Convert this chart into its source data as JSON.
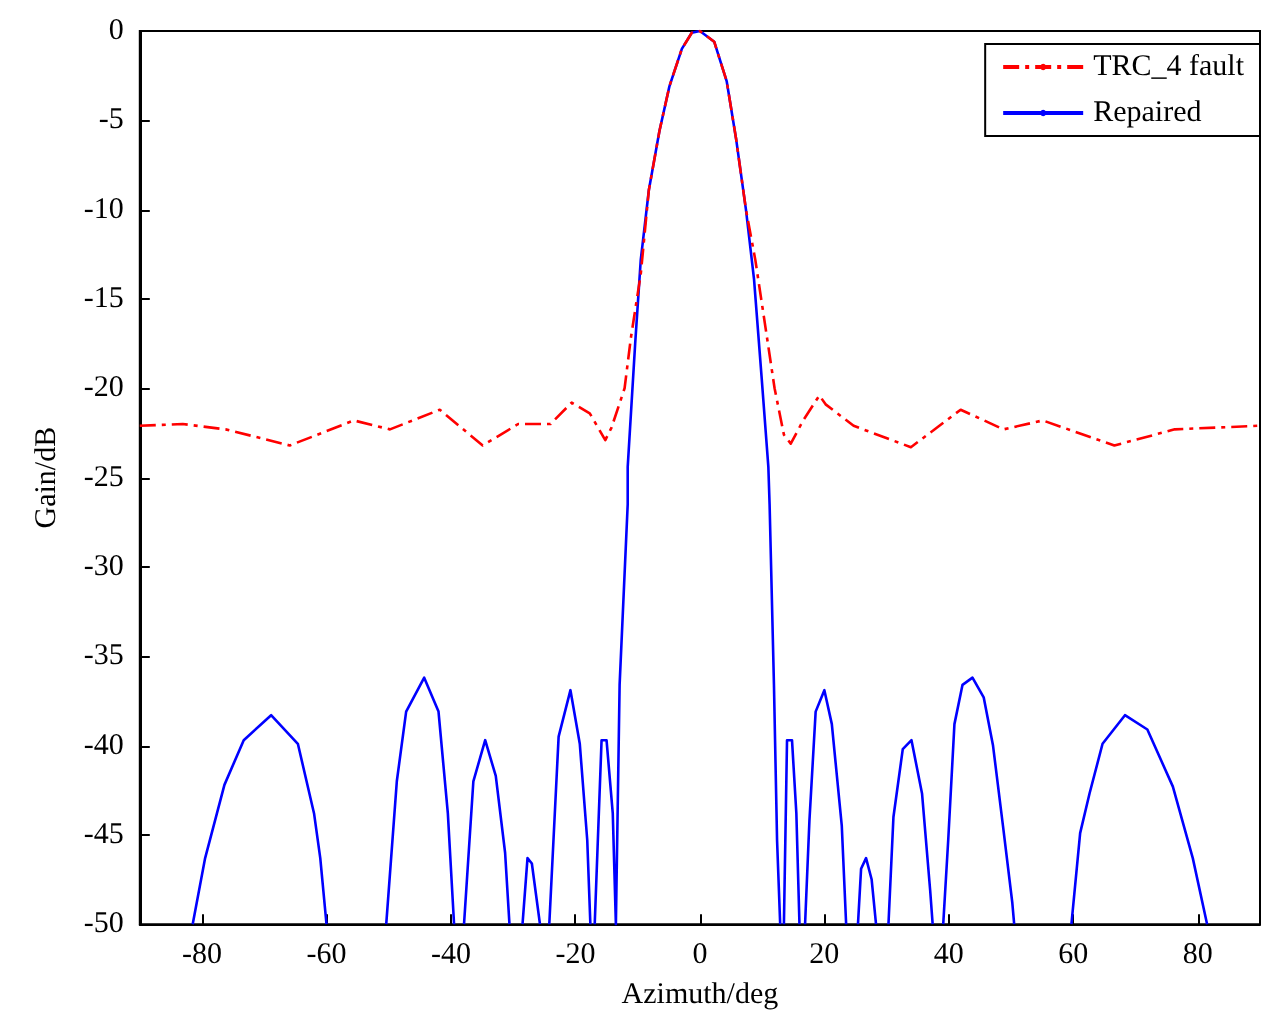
{
  "chart_data": {
    "type": "line",
    "xlabel": "Azimuth/deg",
    "ylabel": "Gain/dB",
    "xlim": [
      -90,
      90
    ],
    "xticks": [
      -80,
      -60,
      -40,
      -20,
      0,
      20,
      40,
      60,
      80
    ],
    "ylim": [
      -50,
      0
    ],
    "yticks": [
      -50,
      -45,
      -40,
      -35,
      -30,
      -25,
      -20,
      -15,
      -10,
      -5,
      0
    ],
    "grid": false,
    "legend": "top right",
    "marker": "none",
    "series": [
      {
        "name": "TRC_4 fault",
        "color": "#ff0000",
        "line_style": "dashed",
        "x": [
          -90,
          -83.1,
          -76.2,
          -65.9,
          -55.6,
          -49.8,
          -41.8,
          -34.9,
          -29.2,
          -24,
          -20.6,
          -17.7,
          -15.2,
          -14.2,
          -12.1,
          -11.1,
          -9.5,
          -8.2,
          -6.5,
          -4.9,
          -2.9,
          -1.3,
          0,
          2.3,
          4.3,
          5.8,
          7.4,
          8.9,
          10.8,
          12,
          13.5,
          14.6,
          16.6,
          19.2,
          20.2,
          24.7,
          33.9,
          41.9,
          48.8,
          55.1,
          66.6,
          76.3,
          89.6
        ],
        "values": [
          -22.1,
          -22,
          -22.3,
          -23.2,
          -21.8,
          -22.3,
          -21.2,
          -23.2,
          -22,
          -22,
          -20.8,
          -21.4,
          -22.9,
          -22.2,
          -20,
          -17.2,
          -13.6,
          -8.9,
          -5.6,
          -3.1,
          -1,
          -0.1,
          0,
          -0.6,
          -2.8,
          -6,
          -10,
          -12.8,
          -17.2,
          -20,
          -22.6,
          -23.1,
          -21.8,
          -20.4,
          -20.9,
          -22.1,
          -23.3,
          -21.2,
          -22.3,
          -21.8,
          -23.2,
          -22.3,
          -22.1
        ]
      },
      {
        "name": "Repaired",
        "color": "#0000ff",
        "line_style": "solid",
        "x": [
          -81.5,
          -79.5,
          -76.4,
          -73.3,
          -68.9,
          -64.6,
          -62,
          -61,
          -60,
          -55,
          -50.4,
          -48.7,
          -47.2,
          -44.3,
          -42,
          -40.5,
          -39.5,
          -38.7,
          -37.9,
          -36.4,
          -34.5,
          -32.8,
          -31.3,
          -30.6,
          -29.5,
          -28.5,
          -27.7,
          -27,
          -25.7,
          -25,
          -24.2,
          -22.7,
          -20.8,
          -19.3,
          -18.1,
          -17.6,
          -17.2,
          -16.9,
          -15.8,
          -15,
          -14,
          -13.5,
          -12.9,
          -11.6,
          -11.6,
          -10.4,
          -9.5,
          -8.2,
          -6.5,
          -4.9,
          -2.9,
          -1.3,
          0,
          2.3,
          4.3,
          5.8,
          7.4,
          8.7,
          9.9,
          11,
          11.2,
          11.9,
          12.4,
          12.9,
          13.2,
          13.5,
          14,
          14.8,
          15.5,
          16,
          16.4,
          16.9,
          17.6,
          18.6,
          20,
          21.2,
          22.8,
          23.5,
          24.5,
          25.4,
          25.9,
          26.7,
          27.6,
          28.3,
          29.3,
          30.3,
          31.1,
          32.6,
          34,
          35.7,
          37,
          37.4,
          38.2,
          39.1,
          39.9,
          40.9,
          42.2,
          43.8,
          45.6,
          47.1,
          48.7,
          50.2,
          50.5,
          55,
          59.7,
          61.1,
          62.6,
          64.7,
          68.3,
          71.9,
          76,
          79.2,
          81.5
        ],
        "values": [
          -50,
          -46.3,
          -42.2,
          -39.7,
          -38.3,
          -39.9,
          -43.8,
          -46.3,
          -50,
          null,
          -50,
          -42,
          -38.1,
          -36.2,
          -38.1,
          -43.8,
          -50,
          null,
          -50,
          -42,
          -39.7,
          -41.7,
          -46,
          -50,
          null,
          -50,
          -46.3,
          -46.6,
          -50,
          null,
          -50,
          -39.5,
          -36.9,
          -39.9,
          -45.3,
          -50,
          null,
          -50,
          -39.7,
          -39.7,
          -43.8,
          -50,
          -36.6,
          -26.5,
          -24.4,
          -17.5,
          -12.8,
          -8.9,
          -5.6,
          -3.1,
          -1,
          -0.1,
          0,
          -0.6,
          -2.8,
          -6,
          -10,
          -13.9,
          -19.3,
          -24.4,
          -26.5,
          -36.6,
          -45.3,
          -50,
          null,
          -50,
          -39.7,
          -39.7,
          -43.8,
          -50,
          null,
          -50,
          -44.2,
          -38.1,
          -36.9,
          -38.8,
          -44.5,
          -50,
          null,
          -50,
          -46.9,
          -46.3,
          -47.5,
          -50,
          null,
          -50,
          -44,
          -40.2,
          -39.7,
          -42.7,
          -48.1,
          -50,
          null,
          -50,
          -45.3,
          -38.8,
          -36.6,
          -36.2,
          -37.3,
          -40,
          -44.5,
          -48.8,
          -50,
          null,
          -50,
          -44.9,
          -42.7,
          -39.9,
          -38.3,
          -39.1,
          -42.3,
          -46.3,
          -50
        ]
      }
    ]
  }
}
